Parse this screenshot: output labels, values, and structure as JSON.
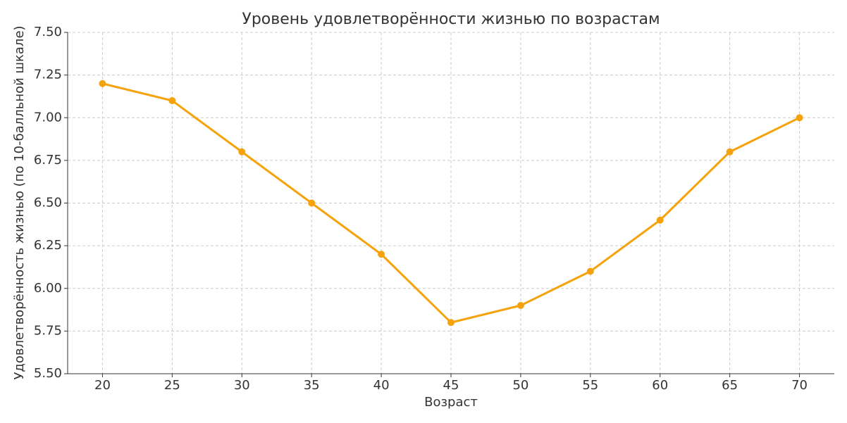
{
  "chart_data": {
    "type": "line",
    "title": "Уровень удовлетворённости жизнью по возрастам",
    "xlabel": "Возраст",
    "ylabel": "Удовлетворённость жизнью (по 10-балльной шкале)",
    "x": [
      20,
      25,
      30,
      35,
      40,
      45,
      50,
      55,
      60,
      65,
      70
    ],
    "series": [
      {
        "color": "#f5a30c",
        "values": [
          7.2,
          7.1,
          6.8,
          6.5,
          6.2,
          5.8,
          5.9,
          6.1,
          6.4,
          6.8,
          7.0
        ]
      }
    ],
    "xlim": [
      17.5,
      72.5
    ],
    "xticks": [
      20,
      25,
      30,
      35,
      40,
      45,
      50,
      55,
      60,
      65,
      70
    ],
    "ylim": [
      5.5,
      7.5
    ],
    "yticks": [
      {
        "value": 5.5,
        "label": "5.50"
      },
      {
        "value": 5.75,
        "label": "5.75"
      },
      {
        "value": 6.0,
        "label": "6.00"
      },
      {
        "value": 6.25,
        "label": "6.25"
      },
      {
        "value": 6.5,
        "label": "6.50"
      },
      {
        "value": 6.75,
        "label": "6.75"
      },
      {
        "value": 7.0,
        "label": "7.00"
      },
      {
        "value": 7.25,
        "label": "7.25"
      },
      {
        "value": 7.5,
        "label": "7.50"
      }
    ],
    "grid": true
  }
}
